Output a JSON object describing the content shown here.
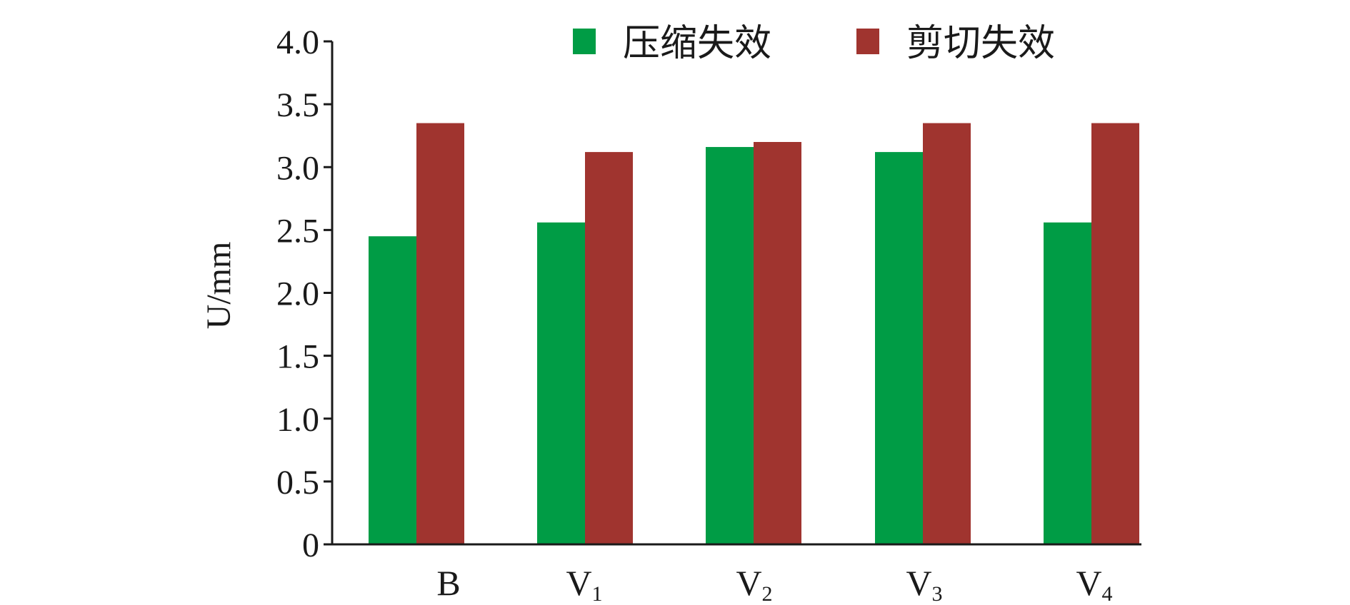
{
  "chart_data": {
    "type": "bar",
    "ylabel": "U/mm",
    "ylim": [
      0,
      4.0
    ],
    "yticks": [
      "0",
      "0.5",
      "1.0",
      "1.5",
      "2.0",
      "2.5",
      "3.0",
      "3.5",
      "4.0"
    ],
    "ytick_values": [
      0,
      0.5,
      1.0,
      1.5,
      2.0,
      2.5,
      3.0,
      3.5,
      4.0
    ],
    "categories": [
      {
        "main": "B",
        "sub": ""
      },
      {
        "main": "V",
        "sub": "1"
      },
      {
        "main": "V",
        "sub": "2"
      },
      {
        "main": "V",
        "sub": "3"
      },
      {
        "main": "V",
        "sub": "4"
      }
    ],
    "series": [
      {
        "name": "压缩失效",
        "color": "#009c45",
        "values": [
          2.45,
          2.56,
          3.16,
          3.12,
          2.56
        ]
      },
      {
        "name": "剪切失效",
        "color": "#a0342f",
        "values": [
          3.35,
          3.12,
          3.2,
          3.35,
          3.35
        ]
      }
    ],
    "legend": "top-right",
    "grid": false
  }
}
